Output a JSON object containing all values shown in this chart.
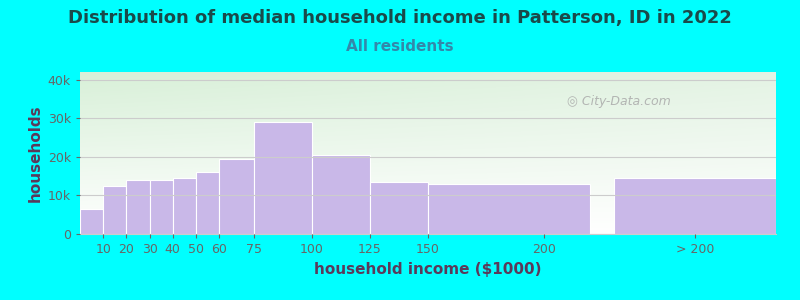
{
  "title": "Distribution of median household income in Patterson, ID in 2022",
  "subtitle": "All residents",
  "xlabel": "household income ($1000)",
  "ylabel": "households",
  "background_color": "#00FFFF",
  "plot_bg_color_topleft": "#d8f0d8",
  "plot_bg_color_right": "#f0f8f0",
  "plot_bg_color_bottom": "#ffffff",
  "bar_color": "#c9b8e8",
  "bar_edge_color": "#ffffff",
  "title_color": "#1a4a4a",
  "subtitle_color": "#3388aa",
  "axis_label_color": "#5a3a5a",
  "tick_label_color": "#666666",
  "values": [
    6500,
    12500,
    14000,
    14000,
    14500,
    16000,
    19500,
    29000,
    20500,
    13500,
    13000,
    14500
  ],
  "bar_positions": [
    0,
    10,
    20,
    30,
    40,
    50,
    60,
    75,
    100,
    125,
    150,
    230
  ],
  "bar_widths": [
    10,
    10,
    10,
    10,
    10,
    10,
    15,
    25,
    25,
    25,
    70,
    70
  ],
  "ylim": [
    0,
    42000
  ],
  "yticks": [
    0,
    10000,
    20000,
    30000,
    40000
  ],
  "ytick_labels": [
    "0",
    "10k",
    "20k",
    "30k",
    "40k"
  ],
  "xtick_positions": [
    10,
    20,
    30,
    40,
    50,
    60,
    75,
    100,
    125,
    150,
    200,
    265
  ],
  "xtick_labels": [
    "10",
    "20",
    "30",
    "40",
    "50",
    "60",
    "75",
    "100",
    "125",
    "150",
    "200",
    "> 200"
  ],
  "xlim": [
    0,
    300
  ],
  "watermark": "City-Data.com",
  "watermark_color": "#aaaaaa",
  "grid_color": "#cccccc",
  "title_fontsize": 13,
  "subtitle_fontsize": 11,
  "axis_label_fontsize": 11,
  "tick_fontsize": 9
}
